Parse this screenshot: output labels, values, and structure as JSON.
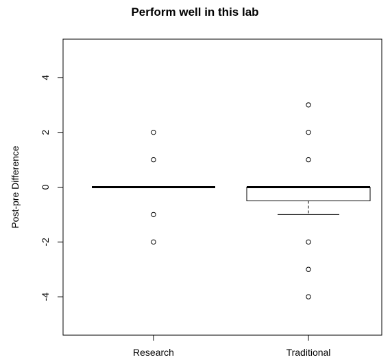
{
  "chart_data": {
    "type": "boxplot",
    "title": "Perform well in this lab",
    "xlabel": "",
    "ylabel": "Post-pre Difference",
    "ylim": [
      -5.4,
      5.4
    ],
    "yticks": [
      "-4",
      "-2",
      "0",
      "2",
      "4"
    ],
    "grid": false,
    "categories": [
      "Research",
      "Traditional"
    ],
    "boxes": [
      {
        "category": "Research",
        "median": 0,
        "q1": 0,
        "q3": 0,
        "whisker_low": 0,
        "whisker_high": 0,
        "outliers": [
          2,
          1,
          -1,
          -2
        ]
      },
      {
        "category": "Traditional",
        "median": 0,
        "q1": -0.5,
        "q3": 0,
        "whisker_low": -1,
        "whisker_high": 0,
        "outliers": [
          3,
          2,
          1,
          -2,
          -3,
          -4
        ]
      }
    ],
    "colors": {
      "box_fill": "#ffffff",
      "line": "#000000"
    }
  }
}
